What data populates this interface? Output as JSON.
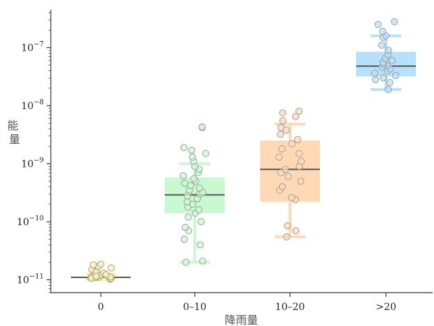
{
  "chart_data": {
    "type": "box",
    "xlabel": "降雨量",
    "ylabel": "能量",
    "yscale": "log",
    "ylim": [
      6e-12,
      4.5e-07
    ],
    "categories": [
      "0",
      "0–10",
      "10–20",
      ">20"
    ],
    "colors": {
      "box": [
        "#fff3a8",
        "#c9f9d1",
        "#ffd9b5",
        "#b7e0fb"
      ],
      "median": "#555555",
      "axis": "#333333",
      "point_edge": "#9e9e9e"
    },
    "boxes": [
      {
        "category": "0",
        "min": 1e-11,
        "q1": 1.08e-11,
        "median": 1.1e-11,
        "q3": 1.13e-11,
        "max": 1.25e-11,
        "points": [
          1.02e-11,
          1.05e-11,
          1.08e-11,
          1.1e-11,
          1.12e-11,
          1.14e-11,
          1.18e-11,
          1.2e-11,
          1.3e-11,
          1.4e-11,
          1.5e-11,
          1.6e-11,
          1.7e-11,
          1.8e-11,
          1.85e-11,
          1.1e-11,
          1.06e-11,
          1.22e-11,
          1.35e-11,
          1.15e-11
        ]
      },
      {
        "category": "0–10",
        "min": 2e-11,
        "q1": 1.4e-10,
        "median": 2.9e-10,
        "q3": 5.8e-10,
        "max": 1e-09,
        "points": [
          2e-11,
          2.1e-11,
          4e-11,
          5e-11,
          7e-11,
          8e-11,
          1e-10,
          1.2e-10,
          1.4e-10,
          1.6e-10,
          1.8e-10,
          2e-10,
          2.2e-10,
          2.5e-10,
          2.8e-10,
          3e-10,
          3.2e-10,
          3.5e-10,
          3.8e-10,
          4.2e-10,
          4.6e-10,
          5e-10,
          5.5e-10,
          6.2e-10,
          7e-10,
          8e-10,
          9e-10,
          1.1e-09,
          1.3e-09,
          1.5e-09,
          1.7e-09,
          1.9e-09,
          4.2e-09,
          4.3e-09
        ]
      },
      {
        "category": "10–20",
        "min": 5.5e-11,
        "q1": 2.2e-10,
        "median": 8e-10,
        "q3": 2.5e-09,
        "max": 4.8e-09,
        "points": [
          5.5e-11,
          7e-11,
          8.5e-11,
          2.4e-10,
          2.6e-10,
          3.5e-10,
          4e-10,
          5e-10,
          6e-10,
          7e-10,
          8e-10,
          9e-10,
          1.1e-09,
          1.3e-09,
          1.5e-09,
          1.8e-09,
          2.2e-09,
          2.6e-09,
          3.2e-09,
          3.8e-09,
          4.2e-09,
          5.5e-09,
          6.5e-09,
          7.5e-09,
          8e-09
        ]
      },
      {
        "category": ">20",
        "min": 1.9e-08,
        "q1": 3.2e-08,
        "median": 4.8e-08,
        "q3": 8.5e-08,
        "max": 1.6e-07,
        "points": [
          1.9e-08,
          2.5e-08,
          2.8e-08,
          3e-08,
          3.3e-08,
          3.6e-08,
          4e-08,
          4.3e-08,
          4.6e-08,
          4.9e-08,
          5.2e-08,
          5.6e-08,
          6e-08,
          6.5e-08,
          7.5e-08,
          9e-08,
          1.1e-07,
          1.5e-07,
          1.6e-07,
          1.9e-07,
          2.5e-07,
          2.8e-07
        ]
      }
    ],
    "yticks": [
      {
        "value": 1e-11,
        "base": "10",
        "exp": "−11"
      },
      {
        "value": 1e-10,
        "base": "10",
        "exp": "−10"
      },
      {
        "value": 1e-09,
        "base": "10",
        "exp": "−9"
      },
      {
        "value": 1e-08,
        "base": "10",
        "exp": "−8"
      },
      {
        "value": 1e-07,
        "base": "10",
        "exp": "−7"
      }
    ]
  }
}
